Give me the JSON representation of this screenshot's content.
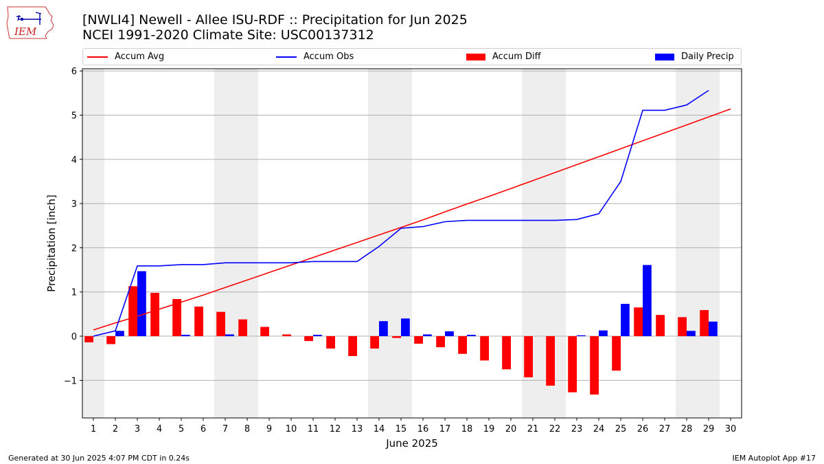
{
  "header": {
    "title_line1": "[NWLI4] Newell - Allee ISU-RDF :: Precipitation for Jun 2025",
    "title_line2": "NCEI 1991-2020 Climate Site: USC00137312",
    "logo_text": "IEM"
  },
  "footer": {
    "left": "Generated at 30 Jun 2025 4:07 PM CDT in 0.24s",
    "right": "IEM Autoplot App #17"
  },
  "colors": {
    "accum_avg": "#ff0000",
    "accum_obs": "#0000ff",
    "accum_diff": "#ff0000",
    "daily_precip": "#0000ff",
    "weekend_shade": "#eeeeee",
    "grid": "#b0b0b0"
  },
  "chart_data": {
    "type": "bar",
    "xlabel": "June 2025",
    "ylabel": "Precipitation [inch]",
    "ylim": [
      -1.85,
      6.05
    ],
    "xlim": [
      0.5,
      30.5
    ],
    "yticks": [
      -1,
      0,
      1,
      2,
      3,
      4,
      5,
      6
    ],
    "ytick_labels": [
      "−1",
      "0",
      "1",
      "2",
      "3",
      "4",
      "5",
      "6"
    ],
    "grid": "horizontal",
    "legend_position": "top",
    "x": [
      1,
      2,
      3,
      4,
      5,
      6,
      7,
      8,
      9,
      10,
      11,
      12,
      13,
      14,
      15,
      16,
      17,
      18,
      19,
      20,
      21,
      22,
      23,
      24,
      25,
      26,
      27,
      28,
      29,
      30
    ],
    "x_tick_labels": [
      "1",
      "2",
      "3",
      "4",
      "5",
      "6",
      "7",
      "8",
      "9",
      "10",
      "11",
      "12",
      "13",
      "14",
      "15",
      "16",
      "17",
      "18",
      "19",
      "20",
      "21",
      "22",
      "23",
      "24",
      "25",
      "26",
      "27",
      "28",
      "29",
      "30"
    ],
    "weekend_days": [
      1,
      7,
      8,
      14,
      15,
      21,
      22,
      28,
      29
    ],
    "series": [
      {
        "name": "Accum Avg",
        "kind": "line",
        "values": [
          0.14,
          0.3,
          0.45,
          0.61,
          0.77,
          0.93,
          1.1,
          1.27,
          1.44,
          1.61,
          1.78,
          1.95,
          2.12,
          2.29,
          2.46,
          2.63,
          2.81,
          2.99,
          3.16,
          3.34,
          3.52,
          3.7,
          3.88,
          4.06,
          4.24,
          4.42,
          4.6,
          4.78,
          4.96,
          5.14
        ]
      },
      {
        "name": "Accum Obs",
        "kind": "line",
        "values": [
          0.0,
          0.12,
          1.59,
          1.59,
          1.62,
          1.62,
          1.66,
          1.66,
          1.66,
          1.66,
          1.69,
          1.69,
          1.69,
          2.03,
          2.44,
          2.48,
          2.59,
          2.62,
          2.62,
          2.62,
          2.62,
          2.62,
          2.64,
          2.77,
          3.5,
          5.11,
          5.11,
          5.23,
          5.56,
          null
        ]
      },
      {
        "name": "Accum Diff",
        "kind": "bar",
        "values": [
          -0.14,
          -0.18,
          1.13,
          0.98,
          0.84,
          0.67,
          0.55,
          0.38,
          0.21,
          0.04,
          -0.11,
          -0.28,
          -0.45,
          -0.28,
          -0.04,
          -0.17,
          -0.25,
          -0.4,
          -0.55,
          -0.75,
          -0.93,
          -1.12,
          -1.27,
          -1.32,
          -0.78,
          0.65,
          0.48,
          0.43,
          0.59,
          null
        ]
      },
      {
        "name": "Daily Precip",
        "kind": "bar",
        "values": [
          0.0,
          0.12,
          1.47,
          0.0,
          0.03,
          0.0,
          0.04,
          0.0,
          0.0,
          0.0,
          0.03,
          0.0,
          0.0,
          0.34,
          0.4,
          0.04,
          0.11,
          0.03,
          0.0,
          0.0,
          0.0,
          0.0,
          0.02,
          0.13,
          0.73,
          1.61,
          0.0,
          0.12,
          0.33,
          null
        ]
      }
    ]
  }
}
